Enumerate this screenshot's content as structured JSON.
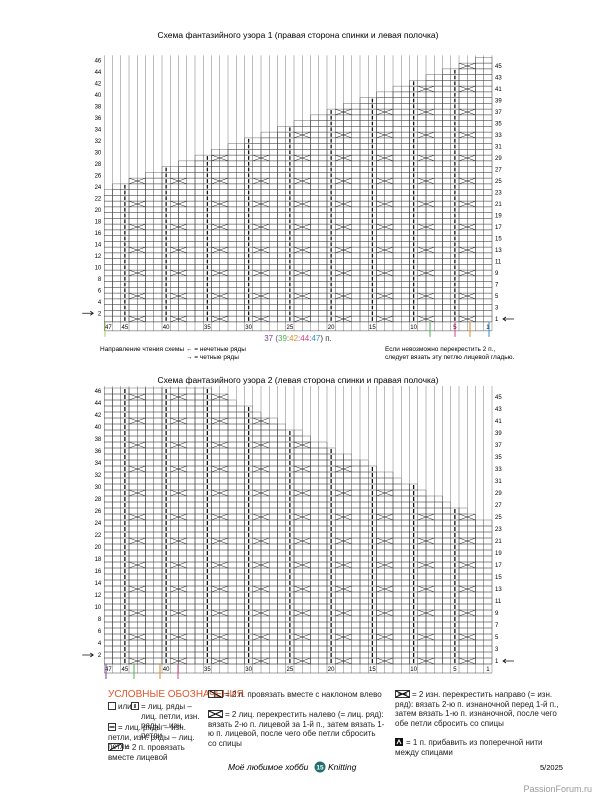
{
  "charts": [
    {
      "title": "Схема фантазийного узора 1 (правая сторона спинки и левая полочка)",
      "rows_left": [
        46,
        44,
        42,
        40,
        38,
        36,
        34,
        32,
        30,
        28,
        26,
        24,
        22,
        20,
        18,
        16,
        14,
        12,
        10,
        8,
        6,
        4,
        2
      ],
      "rows_right": [
        45,
        43,
        41,
        39,
        37,
        35,
        33,
        31,
        29,
        27,
        25,
        23,
        21,
        19,
        17,
        15,
        13,
        11,
        9,
        7,
        5,
        3,
        1
      ],
      "columns": [
        47,
        45,
        40,
        35,
        30,
        25,
        20,
        15,
        10,
        5,
        1
      ]
    },
    {
      "title": "Схема фантазийного узора 2 (левая сторона спинки и правая полочка)",
      "rows_left": [
        46,
        44,
        42,
        40,
        38,
        36,
        34,
        32,
        30,
        28,
        26,
        24,
        22,
        20,
        18,
        16,
        14,
        12,
        10,
        8,
        6,
        4,
        2
      ],
      "rows_right": [
        45,
        43,
        41,
        39,
        37,
        35,
        33,
        31,
        29,
        27,
        25,
        23,
        21,
        19,
        17,
        15,
        13,
        11,
        9,
        7,
        5,
        3,
        1
      ],
      "columns": [
        47,
        45,
        40,
        35,
        30,
        25,
        20,
        15,
        10,
        5,
        1
      ]
    }
  ],
  "stitch_count": [
    {
      "text": "37",
      "color": "#7b3f98"
    },
    {
      "text": " (",
      "color": "#7b3f98"
    },
    {
      "text": "39",
      "color": "#4caf50"
    },
    {
      "text": ":",
      "color": "#7b3f98"
    },
    {
      "text": "42",
      "color": "#e08a1e"
    },
    {
      "text": ":",
      "color": "#7b3f98"
    },
    {
      "text": "44",
      "color": "#d6427e"
    },
    {
      "text": ":",
      "color": "#7b3f98"
    },
    {
      "text": "47",
      "color": "#2f8fc9"
    },
    {
      "text": ") п.",
      "color": "#333333"
    }
  ],
  "reading": {
    "label": "Направление чтения схемы",
    "odd": "← = нечетные ряды",
    "even": "→ = четные ряды"
  },
  "note": [
    "Если невозможно перекрестить 2 п.,",
    "следует вязать эту петлю лицевой гладью."
  ],
  "legend": {
    "title": "УСЛОВНЫЕ ОБОЗНАЧЕНИЯ",
    "items": [
      {
        "or": "или",
        "text": "= лиц. ряды – лиц. петли, изн. ряды – изн. петли"
      },
      {
        "text": "= лиц. ряды – изн. петли, изн. ряды – лиц. петли"
      },
      {
        "text": "= 2 п. провязать вместе лицевой"
      },
      {
        "text": "= 2 п. провязать вместе с наклоном влево"
      },
      {
        "text": "= 2 лиц. перекрестить налево (= лиц. ряд): вязать 2-ю п. лицевой за 1-й п., затем вязать 1-ю п. лицевой, после чего обе петли сбросить со спицы"
      },
      {
        "text": "= 2 изн. перекрестить направо (= изн. ряд): вязать 2-ю п. изнаночной перед 1-й п., затем вязать 1-ю п. изнаночной, после чего обе петли сбросить со спицы"
      },
      {
        "text": "= 1 п. прибавить из поперечной нити между спицами"
      }
    ]
  },
  "footer": {
    "magazine": "Моё любимое хобби",
    "page": "15",
    "section": "Knitting",
    "issue": "5/2025"
  },
  "watermark": "PassionForum.ru"
}
